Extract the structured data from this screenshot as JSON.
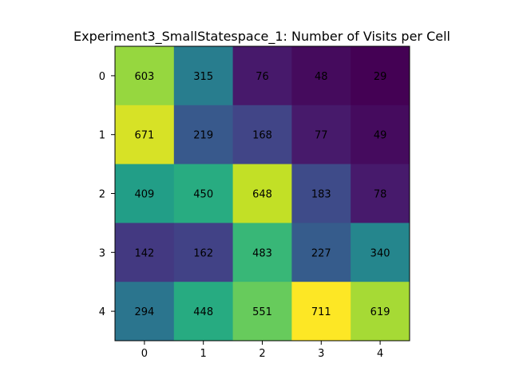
{
  "chart_data": {
    "type": "heatmap",
    "title": "Experiment3_SmallStatespace_1: Number of Visits per Cell",
    "xlabel": "",
    "ylabel": "",
    "x_ticks": [
      "0",
      "1",
      "2",
      "3",
      "4"
    ],
    "y_ticks": [
      "0",
      "1",
      "2",
      "3",
      "4"
    ],
    "colormap": "viridis",
    "value_range": [
      29,
      711
    ],
    "grid": false,
    "values": [
      [
        603,
        315,
        76,
        48,
        29
      ],
      [
        671,
        219,
        168,
        77,
        49
      ],
      [
        409,
        450,
        648,
        183,
        78
      ],
      [
        142,
        162,
        483,
        227,
        340
      ],
      [
        294,
        448,
        551,
        711,
        619
      ]
    ]
  }
}
